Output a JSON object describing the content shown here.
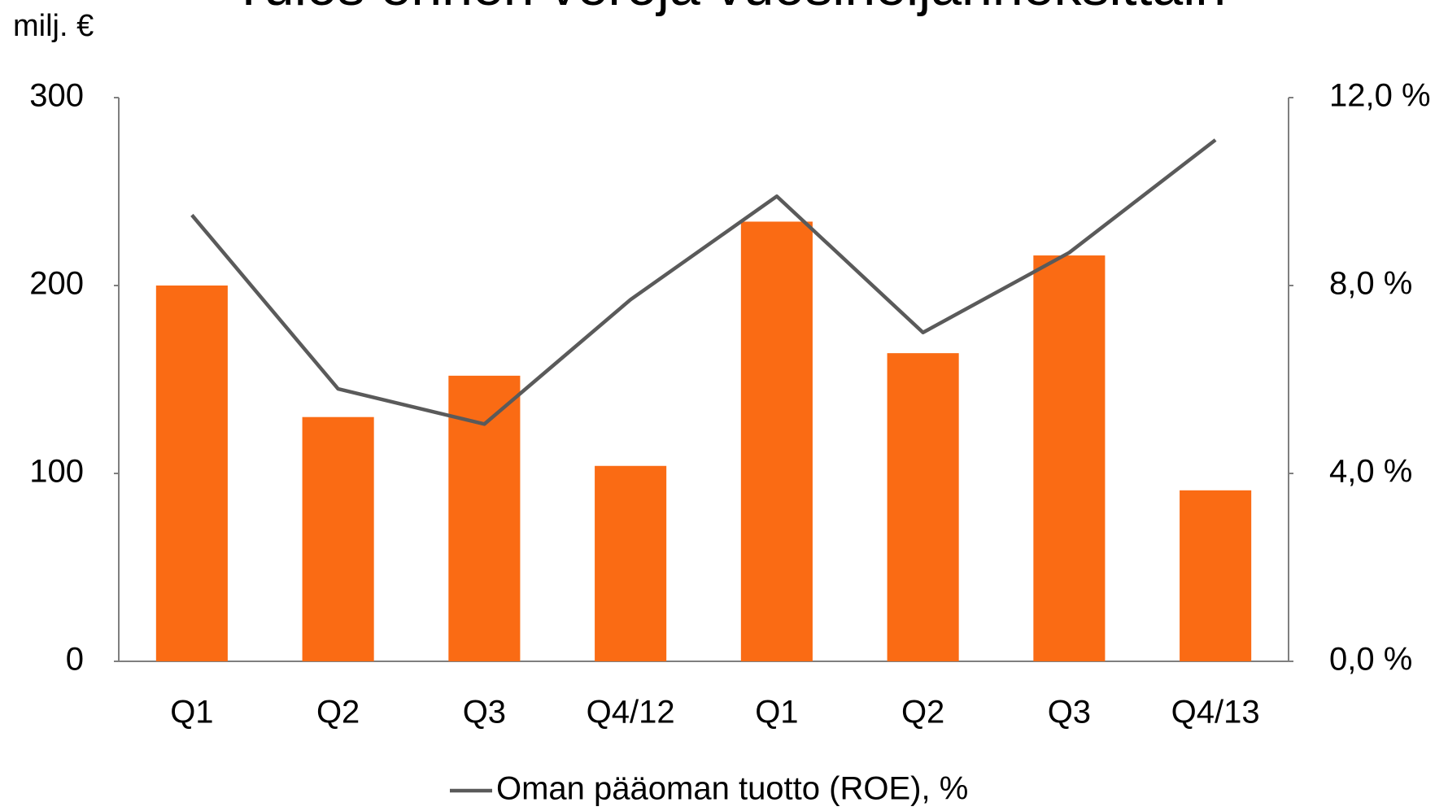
{
  "chart_data": {
    "type": "bar",
    "title": "Tulos ennen veroja vuosineljänneksittäin",
    "y_label": "milj. €",
    "categories": [
      "Q1",
      "Q2",
      "Q3",
      "Q4/12",
      "Q1",
      "Q2",
      "Q3",
      "Q4/13"
    ],
    "series": [
      {
        "type": "bar",
        "color": "#fa6b14",
        "values": [
          200,
          130,
          152,
          104,
          234,
          164,
          216,
          91
        ]
      },
      {
        "type": "line",
        "name": "Oman pääoman tuotto (ROE), %",
        "color": "#5a5a5a",
        "axis": "y2",
        "values": [
          9.5,
          5.8,
          5.05,
          7.7,
          9.9,
          7.0,
          8.7,
          11.1
        ]
      }
    ],
    "ylim": [
      0,
      300
    ],
    "yticks": [
      0,
      100,
      200,
      300
    ],
    "y2lim": [
      0,
      12
    ],
    "y2ticks": [
      {
        "value": 0,
        "label": "0,0 %"
      },
      {
        "value": 4,
        "label": "4,0 %"
      },
      {
        "value": 8,
        "label": "8,0 %"
      },
      {
        "value": 12,
        "label": "12,0 %"
      }
    ],
    "grid": false
  }
}
